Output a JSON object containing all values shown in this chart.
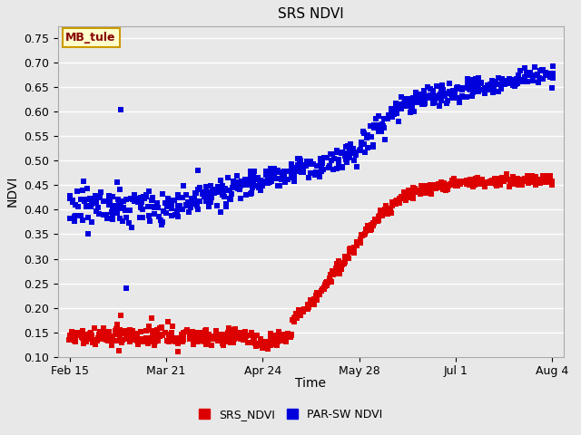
{
  "title": "SRS NDVI",
  "xlabel": "Time",
  "ylabel": "NDVI",
  "ylim": [
    0.1,
    0.775
  ],
  "yticks": [
    0.1,
    0.15,
    0.2,
    0.25,
    0.3,
    0.35,
    0.4,
    0.45,
    0.5,
    0.55,
    0.6,
    0.65,
    0.7,
    0.75
  ],
  "background_color": "#e0e0e0",
  "plot_bg_color": "#e8e8e8",
  "grid_color": "#ffffff",
  "srs_color": "#dd0000",
  "parsw_color": "#0000dd",
  "marker_size": 4,
  "legend_label_srs": "SRS_NDVI",
  "legend_label_parsw": "PAR-SW NDVI",
  "annotation_text": "MB_tule",
  "annotation_bg": "#ffffcc",
  "annotation_border": "#cc9900",
  "xtick_labels": [
    "Feb 15",
    "Mar 21",
    "Apr 24",
    "May 28",
    "Jul 1",
    "Aug 4"
  ],
  "xtick_positions": [
    46,
    80,
    114,
    148,
    182,
    216
  ],
  "xlim": [
    42,
    220
  ]
}
